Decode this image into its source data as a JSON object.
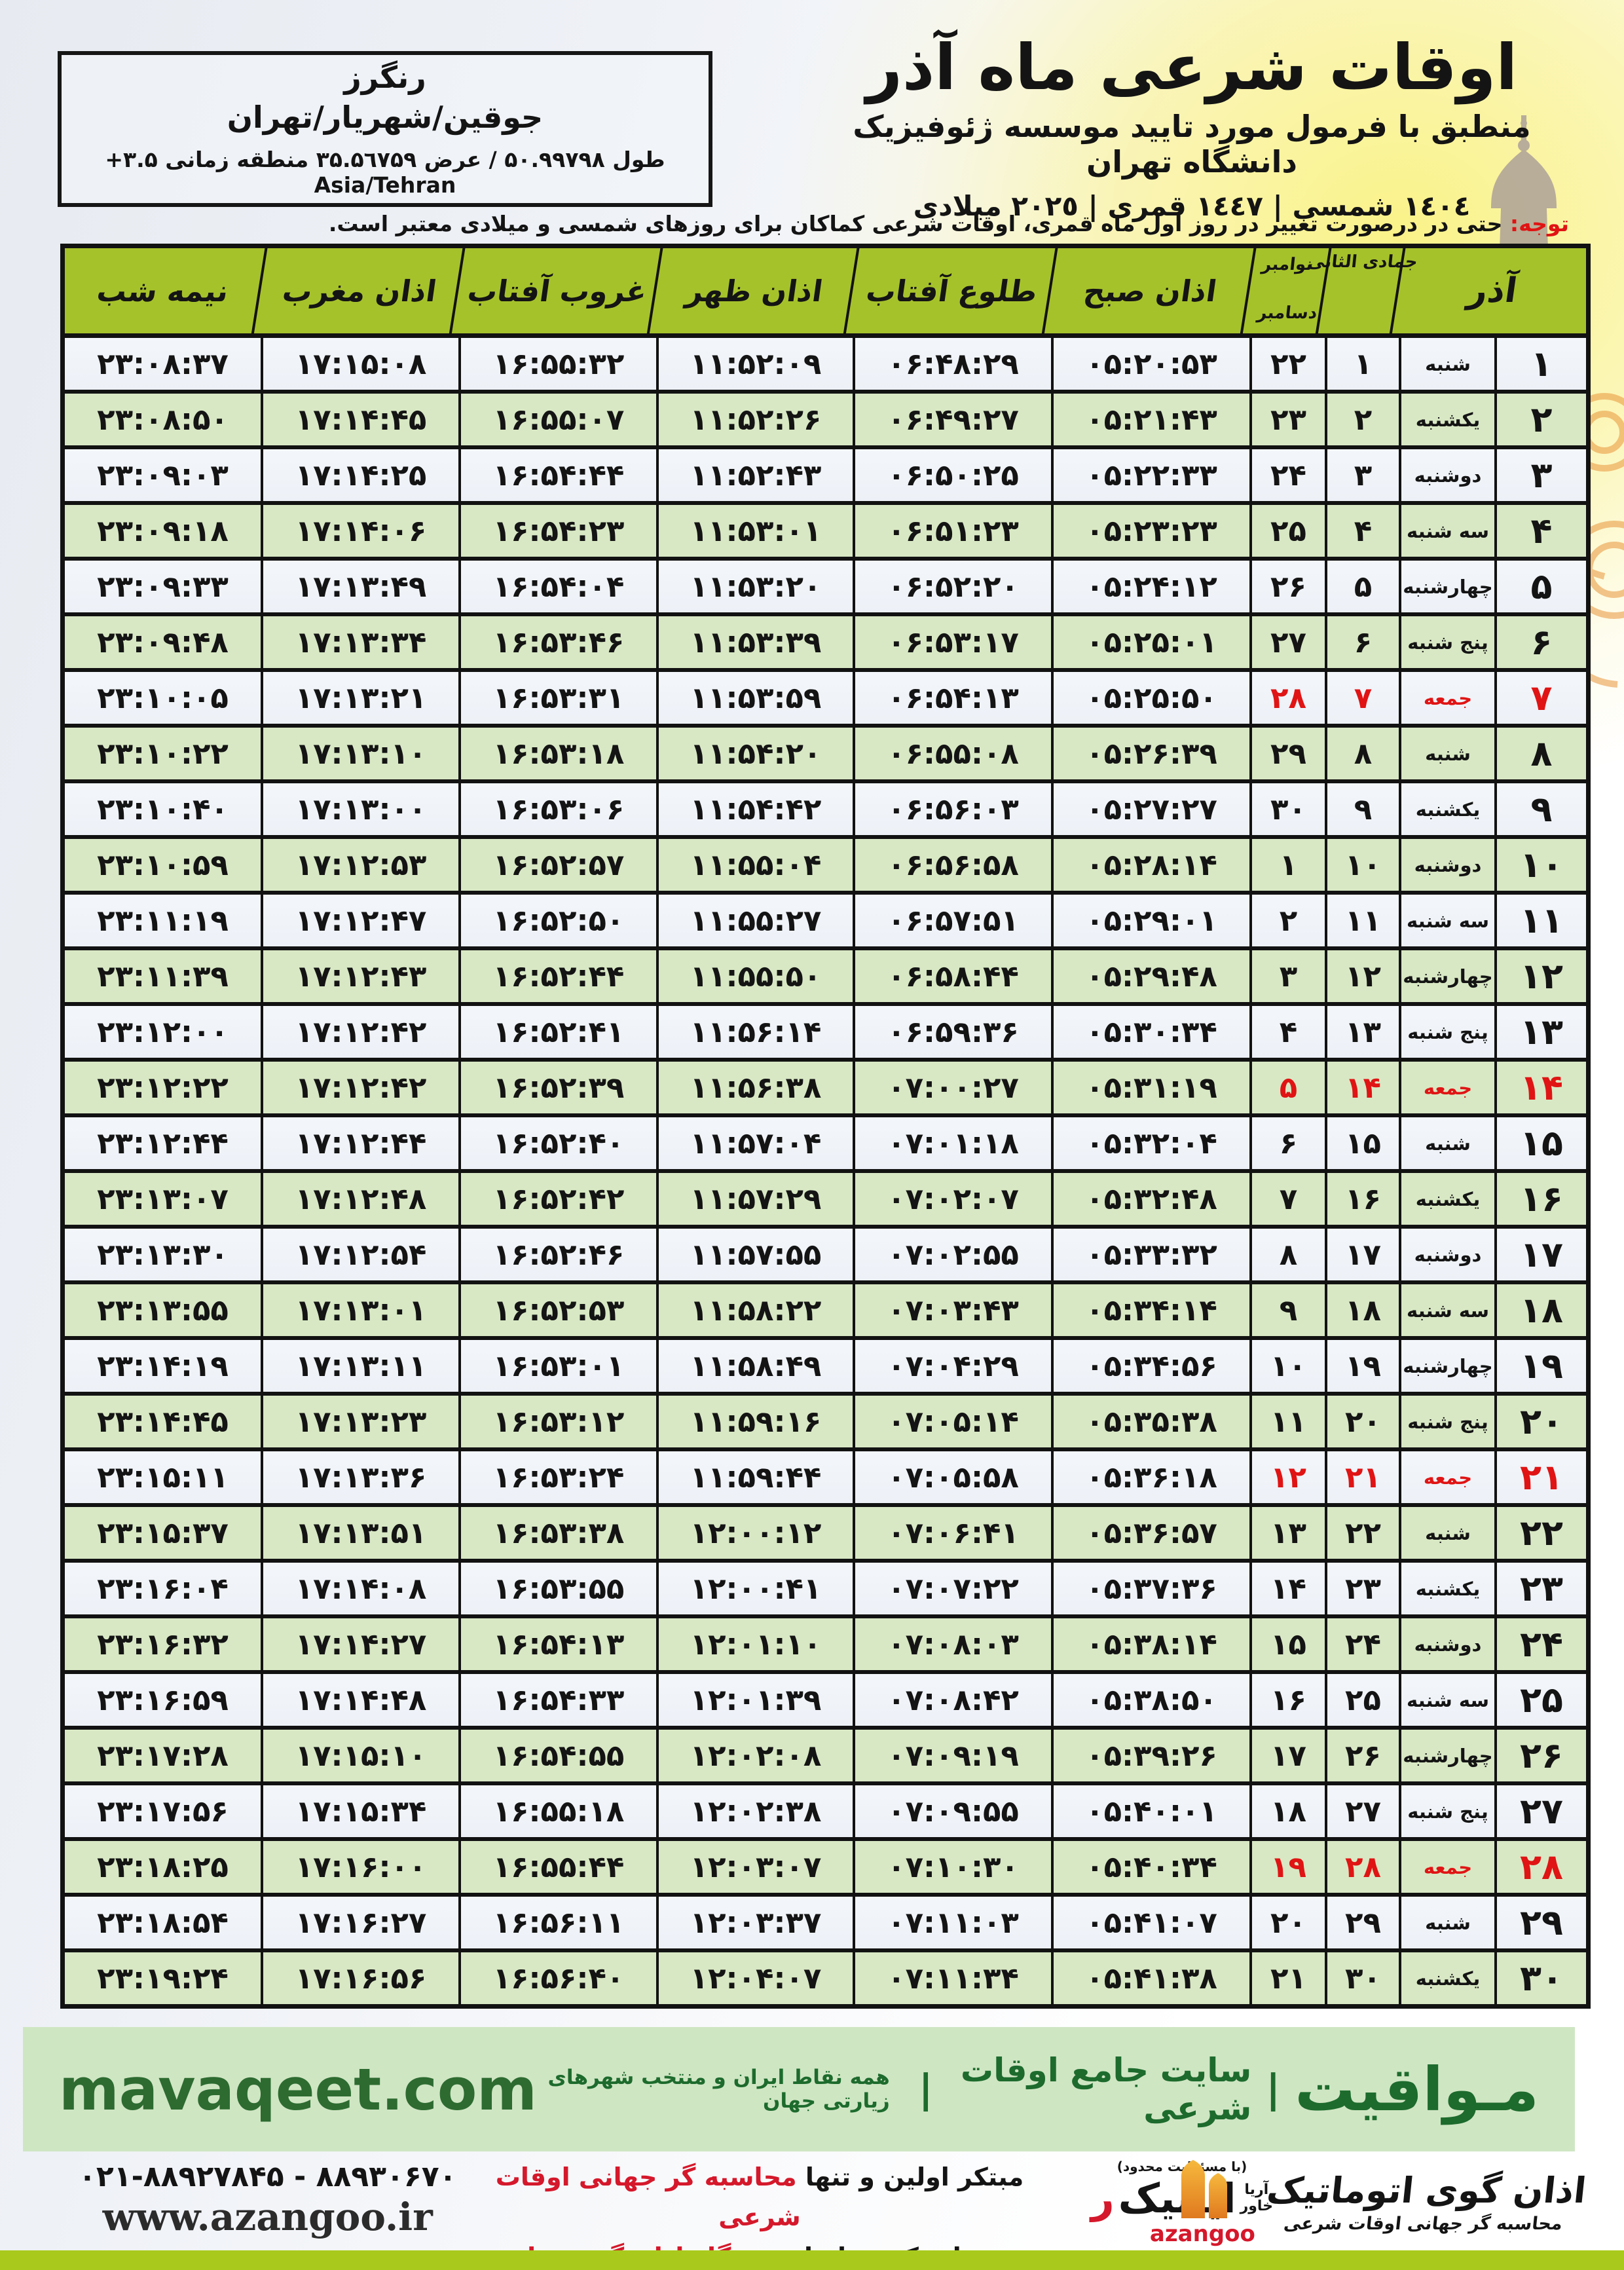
{
  "header": {
    "title": "اوقات شرعی ماه آذر",
    "subtitle": "منطبق با فرمول مورد تایید موسسه ژئوفیزیک دانشگاه تهران",
    "dates": "١٤٠٤ شمسی | ١٤٤٧ قمری | ٢٠٢٥ میلادی"
  },
  "location": {
    "name": "رنگرز",
    "region": "جوقین/شهریار/تهران",
    "coords": "طول ۵۰.۹۹۷۹۸ / عرض ۳۵.۵٦۷۵۹ منطقه زمانی ۳.۵+ Asia/Tehran"
  },
  "note": {
    "label": "توجه:",
    "text": " حتی در درصورت تغییر در روز اول ماه قمری، اوقات شرعی کماکان برای روزهای شمسی و میلادی معتبر است."
  },
  "table": {
    "headers": {
      "azar": "آذر",
      "jumada": "جمادی الثانی",
      "nov": "نوامبر",
      "dec": "دسامبر",
      "sobh": "اذان صبح",
      "tolu": "طلوع آفتاب",
      "zohr": "اذان ظهر",
      "ghorub": "غروب آفتاب",
      "maghreb": "اذان مغرب",
      "nimeshab": "نیمه شب"
    },
    "rows": [
      {
        "azar": "۱",
        "weekday": "شنبه",
        "jumada": "۱",
        "greg": "۲۲",
        "sobh": "۰۵:۲۰:۵۳",
        "tolu": "۰۶:۴۸:۲۹",
        "zohr": "۱۱:۵۲:۰۹",
        "ghorub": "۱۶:۵۵:۳۲",
        "maghreb": "۱۷:۱۵:۰۸",
        "nimeshab": "۲۳:۰۸:۳۷",
        "friday": false
      },
      {
        "azar": "۲",
        "weekday": "یکشنبه",
        "jumada": "۲",
        "greg": "۲۳",
        "sobh": "۰۵:۲۱:۴۳",
        "tolu": "۰۶:۴۹:۲۷",
        "zohr": "۱۱:۵۲:۲۶",
        "ghorub": "۱۶:۵۵:۰۷",
        "maghreb": "۱۷:۱۴:۴۵",
        "nimeshab": "۲۳:۰۸:۵۰",
        "friday": false
      },
      {
        "azar": "۳",
        "weekday": "دوشنبه",
        "jumada": "۳",
        "greg": "۲۴",
        "sobh": "۰۵:۲۲:۳۳",
        "tolu": "۰۶:۵۰:۲۵",
        "zohr": "۱۱:۵۲:۴۳",
        "ghorub": "۱۶:۵۴:۴۴",
        "maghreb": "۱۷:۱۴:۲۵",
        "nimeshab": "۲۳:۰۹:۰۳",
        "friday": false
      },
      {
        "azar": "۴",
        "weekday": "سه شنبه",
        "jumada": "۴",
        "greg": "۲۵",
        "sobh": "۰۵:۲۳:۲۳",
        "tolu": "۰۶:۵۱:۲۳",
        "zohr": "۱۱:۵۳:۰۱",
        "ghorub": "۱۶:۵۴:۲۳",
        "maghreb": "۱۷:۱۴:۰۶",
        "nimeshab": "۲۳:۰۹:۱۸",
        "friday": false
      },
      {
        "azar": "۵",
        "weekday": "چهارشنبه",
        "jumada": "۵",
        "greg": "۲۶",
        "sobh": "۰۵:۲۴:۱۲",
        "tolu": "۰۶:۵۲:۲۰",
        "zohr": "۱۱:۵۳:۲۰",
        "ghorub": "۱۶:۵۴:۰۴",
        "maghreb": "۱۷:۱۳:۴۹",
        "nimeshab": "۲۳:۰۹:۳۳",
        "friday": false
      },
      {
        "azar": "۶",
        "weekday": "پنج شنبه",
        "jumada": "۶",
        "greg": "۲۷",
        "sobh": "۰۵:۲۵:۰۱",
        "tolu": "۰۶:۵۳:۱۷",
        "zohr": "۱۱:۵۳:۳۹",
        "ghorub": "۱۶:۵۳:۴۶",
        "maghreb": "۱۷:۱۳:۳۴",
        "nimeshab": "۲۳:۰۹:۴۸",
        "friday": false
      },
      {
        "azar": "۷",
        "weekday": "جمعه",
        "jumada": "۷",
        "greg": "۲۸",
        "sobh": "۰۵:۲۵:۵۰",
        "tolu": "۰۶:۵۴:۱۳",
        "zohr": "۱۱:۵۳:۵۹",
        "ghorub": "۱۶:۵۳:۳۱",
        "maghreb": "۱۷:۱۳:۲۱",
        "nimeshab": "۲۳:۱۰:۰۵",
        "friday": true
      },
      {
        "azar": "۸",
        "weekday": "شنبه",
        "jumada": "۸",
        "greg": "۲۹",
        "sobh": "۰۵:۲۶:۳۹",
        "tolu": "۰۶:۵۵:۰۸",
        "zohr": "۱۱:۵۴:۲۰",
        "ghorub": "۱۶:۵۳:۱۸",
        "maghreb": "۱۷:۱۳:۱۰",
        "nimeshab": "۲۳:۱۰:۲۲",
        "friday": false
      },
      {
        "azar": "۹",
        "weekday": "یکشنبه",
        "jumada": "۹",
        "greg": "۳۰",
        "sobh": "۰۵:۲۷:۲۷",
        "tolu": "۰۶:۵۶:۰۳",
        "zohr": "۱۱:۵۴:۴۲",
        "ghorub": "۱۶:۵۳:۰۶",
        "maghreb": "۱۷:۱۳:۰۰",
        "nimeshab": "۲۳:۱۰:۴۰",
        "friday": false
      },
      {
        "azar": "۱۰",
        "weekday": "دوشنبه",
        "jumada": "۱۰",
        "greg": "۱",
        "sobh": "۰۵:۲۸:۱۴",
        "tolu": "۰۶:۵۶:۵۸",
        "zohr": "۱۱:۵۵:۰۴",
        "ghorub": "۱۶:۵۲:۵۷",
        "maghreb": "۱۷:۱۲:۵۳",
        "nimeshab": "۲۳:۱۰:۵۹",
        "friday": false
      },
      {
        "azar": "۱۱",
        "weekday": "سه شنبه",
        "jumada": "۱۱",
        "greg": "۲",
        "sobh": "۰۵:۲۹:۰۱",
        "tolu": "۰۶:۵۷:۵۱",
        "zohr": "۱۱:۵۵:۲۷",
        "ghorub": "۱۶:۵۲:۵۰",
        "maghreb": "۱۷:۱۲:۴۷",
        "nimeshab": "۲۳:۱۱:۱۹",
        "friday": false
      },
      {
        "azar": "۱۲",
        "weekday": "چهارشنبه",
        "jumada": "۱۲",
        "greg": "۳",
        "sobh": "۰۵:۲۹:۴۸",
        "tolu": "۰۶:۵۸:۴۴",
        "zohr": "۱۱:۵۵:۵۰",
        "ghorub": "۱۶:۵۲:۴۴",
        "maghreb": "۱۷:۱۲:۴۳",
        "nimeshab": "۲۳:۱۱:۳۹",
        "friday": false
      },
      {
        "azar": "۱۳",
        "weekday": "پنج شنبه",
        "jumada": "۱۳",
        "greg": "۴",
        "sobh": "۰۵:۳۰:۳۴",
        "tolu": "۰۶:۵۹:۳۶",
        "zohr": "۱۱:۵۶:۱۴",
        "ghorub": "۱۶:۵۲:۴۱",
        "maghreb": "۱۷:۱۲:۴۲",
        "nimeshab": "۲۳:۱۲:۰۰",
        "friday": false
      },
      {
        "azar": "۱۴",
        "weekday": "جمعه",
        "jumada": "۱۴",
        "greg": "۵",
        "sobh": "۰۵:۳۱:۱۹",
        "tolu": "۰۷:۰۰:۲۷",
        "zohr": "۱۱:۵۶:۳۸",
        "ghorub": "۱۶:۵۲:۳۹",
        "maghreb": "۱۷:۱۲:۴۲",
        "nimeshab": "۲۳:۱۲:۲۲",
        "friday": true
      },
      {
        "azar": "۱۵",
        "weekday": "شنبه",
        "jumada": "۱۵",
        "greg": "۶",
        "sobh": "۰۵:۳۲:۰۴",
        "tolu": "۰۷:۰۱:۱۸",
        "zohr": "۱۱:۵۷:۰۴",
        "ghorub": "۱۶:۵۲:۴۰",
        "maghreb": "۱۷:۱۲:۴۴",
        "nimeshab": "۲۳:۱۲:۴۴",
        "friday": false
      },
      {
        "azar": "۱۶",
        "weekday": "یکشنبه",
        "jumada": "۱۶",
        "greg": "۷",
        "sobh": "۰۵:۳۲:۴۸",
        "tolu": "۰۷:۰۲:۰۷",
        "zohr": "۱۱:۵۷:۲۹",
        "ghorub": "۱۶:۵۲:۴۲",
        "maghreb": "۱۷:۱۲:۴۸",
        "nimeshab": "۲۳:۱۳:۰۷",
        "friday": false
      },
      {
        "azar": "۱۷",
        "weekday": "دوشنبه",
        "jumada": "۱۷",
        "greg": "۸",
        "sobh": "۰۵:۳۳:۳۲",
        "tolu": "۰۷:۰۲:۵۵",
        "zohr": "۱۱:۵۷:۵۵",
        "ghorub": "۱۶:۵۲:۴۶",
        "maghreb": "۱۷:۱۲:۵۴",
        "nimeshab": "۲۳:۱۳:۳۰",
        "friday": false
      },
      {
        "azar": "۱۸",
        "weekday": "سه شنبه",
        "jumada": "۱۸",
        "greg": "۹",
        "sobh": "۰۵:۳۴:۱۴",
        "tolu": "۰۷:۰۳:۴۳",
        "zohr": "۱۱:۵۸:۲۲",
        "ghorub": "۱۶:۵۲:۵۳",
        "maghreb": "۱۷:۱۳:۰۱",
        "nimeshab": "۲۳:۱۳:۵۵",
        "friday": false
      },
      {
        "azar": "۱۹",
        "weekday": "چهارشنبه",
        "jumada": "۱۹",
        "greg": "۱۰",
        "sobh": "۰۵:۳۴:۵۶",
        "tolu": "۰۷:۰۴:۲۹",
        "zohr": "۱۱:۵۸:۴۹",
        "ghorub": "۱۶:۵۳:۰۱",
        "maghreb": "۱۷:۱۳:۱۱",
        "nimeshab": "۲۳:۱۴:۱۹",
        "friday": false
      },
      {
        "azar": "۲۰",
        "weekday": "پنج شنبه",
        "jumada": "۲۰",
        "greg": "۱۱",
        "sobh": "۰۵:۳۵:۳۸",
        "tolu": "۰۷:۰۵:۱۴",
        "zohr": "۱۱:۵۹:۱۶",
        "ghorub": "۱۶:۵۳:۱۲",
        "maghreb": "۱۷:۱۳:۲۳",
        "nimeshab": "۲۳:۱۴:۴۵",
        "friday": false
      },
      {
        "azar": "۲۱",
        "weekday": "جمعه",
        "jumada": "۲۱",
        "greg": "۱۲",
        "sobh": "۰۵:۳۶:۱۸",
        "tolu": "۰۷:۰۵:۵۸",
        "zohr": "۱۱:۵۹:۴۴",
        "ghorub": "۱۶:۵۳:۲۴",
        "maghreb": "۱۷:۱۳:۳۶",
        "nimeshab": "۲۳:۱۵:۱۱",
        "friday": true
      },
      {
        "azar": "۲۲",
        "weekday": "شنبه",
        "jumada": "۲۲",
        "greg": "۱۳",
        "sobh": "۰۵:۳۶:۵۷",
        "tolu": "۰۷:۰۶:۴۱",
        "zohr": "۱۲:۰۰:۱۲",
        "ghorub": "۱۶:۵۳:۳۸",
        "maghreb": "۱۷:۱۳:۵۱",
        "nimeshab": "۲۳:۱۵:۳۷",
        "friday": false
      },
      {
        "azar": "۲۳",
        "weekday": "یکشنبه",
        "jumada": "۲۳",
        "greg": "۱۴",
        "sobh": "۰۵:۳۷:۳۶",
        "tolu": "۰۷:۰۷:۲۲",
        "zohr": "۱۲:۰۰:۴۱",
        "ghorub": "۱۶:۵۳:۵۵",
        "maghreb": "۱۷:۱۴:۰۸",
        "nimeshab": "۲۳:۱۶:۰۴",
        "friday": false
      },
      {
        "azar": "۲۴",
        "weekday": "دوشنبه",
        "jumada": "۲۴",
        "greg": "۱۵",
        "sobh": "۰۵:۳۸:۱۴",
        "tolu": "۰۷:۰۸:۰۳",
        "zohr": "۱۲:۰۱:۱۰",
        "ghorub": "۱۶:۵۴:۱۳",
        "maghreb": "۱۷:۱۴:۲۷",
        "nimeshab": "۲۳:۱۶:۳۲",
        "friday": false
      },
      {
        "azar": "۲۵",
        "weekday": "سه شنبه",
        "jumada": "۲۵",
        "greg": "۱۶",
        "sobh": "۰۵:۳۸:۵۰",
        "tolu": "۰۷:۰۸:۴۲",
        "zohr": "۱۲:۰۱:۳۹",
        "ghorub": "۱۶:۵۴:۳۳",
        "maghreb": "۱۷:۱۴:۴۸",
        "nimeshab": "۲۳:۱۶:۵۹",
        "friday": false
      },
      {
        "azar": "۲۶",
        "weekday": "چهارشنبه",
        "jumada": "۲۶",
        "greg": "۱۷",
        "sobh": "۰۵:۳۹:۲۶",
        "tolu": "۰۷:۰۹:۱۹",
        "zohr": "۱۲:۰۲:۰۸",
        "ghorub": "۱۶:۵۴:۵۵",
        "maghreb": "۱۷:۱۵:۱۰",
        "nimeshab": "۲۳:۱۷:۲۸",
        "friday": false
      },
      {
        "azar": "۲۷",
        "weekday": "پنج شنبه",
        "jumada": "۲۷",
        "greg": "۱۸",
        "sobh": "۰۵:۴۰:۰۱",
        "tolu": "۰۷:۰۹:۵۵",
        "zohr": "۱۲:۰۲:۳۸",
        "ghorub": "۱۶:۵۵:۱۸",
        "maghreb": "۱۷:۱۵:۳۴",
        "nimeshab": "۲۳:۱۷:۵۶",
        "friday": false
      },
      {
        "azar": "۲۸",
        "weekday": "جمعه",
        "jumada": "۲۸",
        "greg": "۱۹",
        "sobh": "۰۵:۴۰:۳۴",
        "tolu": "۰۷:۱۰:۳۰",
        "zohr": "۱۲:۰۳:۰۷",
        "ghorub": "۱۶:۵۵:۴۴",
        "maghreb": "۱۷:۱۶:۰۰",
        "nimeshab": "۲۳:۱۸:۲۵",
        "friday": true
      },
      {
        "azar": "۲۹",
        "weekday": "شنبه",
        "jumada": "۲۹",
        "greg": "۲۰",
        "sobh": "۰۵:۴۱:۰۷",
        "tolu": "۰۷:۱۱:۰۳",
        "zohr": "۱۲:۰۳:۳۷",
        "ghorub": "۱۶:۵۶:۱۱",
        "maghreb": "۱۷:۱۶:۲۷",
        "nimeshab": "۲۳:۱۸:۵۴",
        "friday": false
      },
      {
        "azar": "۳۰",
        "weekday": "یکشنبه",
        "jumada": "۳۰",
        "greg": "۲۱",
        "sobh": "۰۵:۴۱:۳۸",
        "tolu": "۰۷:۱۱:۳۴",
        "zohr": "۱۲:۰۴:۰۷",
        "ghorub": "۱۶:۵۶:۴۰",
        "maghreb": "۱۷:۱۶:۵۶",
        "nimeshab": "۲۳:۱۹:۲۴",
        "friday": false
      }
    ]
  },
  "mavaqeet": {
    "brand": "مـواقیت",
    "divider": "|",
    "tagline": "سایت جامع اوقات شرعی",
    "subtag": "همه نقاط ایران و منتخب شهرهای زیارتی جهان",
    "domain": "mavaqeet.com"
  },
  "footer": {
    "phone": "۰۲۱-۸۸۹۲۷۸۴۵ - ۸۸۹۳۰۶۷۰",
    "website": "www.azangoo.ir",
    "line1_black": "مبتکر اولین و تنها ",
    "line1_red": "محاسبه گر جهانی اوقات شرعی",
    "line2_black": "و تولید کننده انواع ",
    "line2_red": "دستگاه اذان گوی تمام خودکار ماهواره ای",
    "rayanik_note": "(با مسئولیت محدود)",
    "rayanik_red": "ر",
    "rayanik_black": "ایانیک",
    "rayanik_stack1": "آریا",
    "rayanik_stack2": "خاور",
    "azangoo_title": "اذان گوی اتوماتیک",
    "azangoo_sub": "محاسبه گر جهانی اوقات شرعی",
    "azangoo_en": "azangoo"
  },
  "colors": {
    "header_green": "#a6c22b",
    "row_green": "#d8e8c4",
    "friday_red": "#e01414",
    "mavaqeet_green": "#1d6b2d",
    "bottom_bar": "#a9ca1d"
  }
}
